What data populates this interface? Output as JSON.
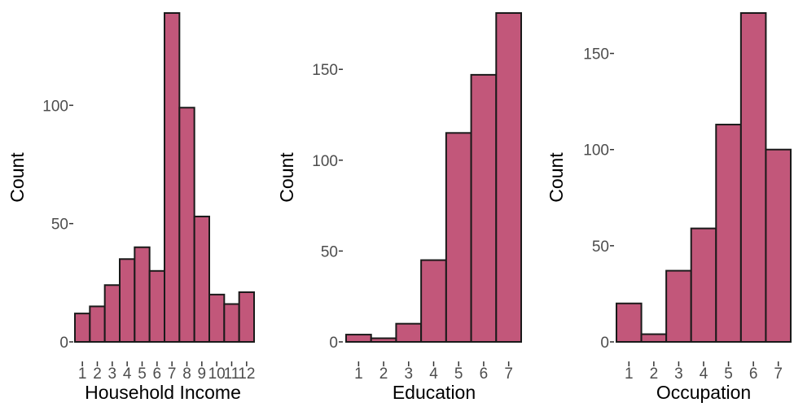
{
  "colors": {
    "bar_fill": "#c2577a",
    "bar_stroke": "#1a1a1a",
    "tick_text": "#4d4d4d",
    "tick_line": "#333333"
  },
  "chart_data": [
    {
      "type": "bar",
      "categories": [
        "1",
        "2",
        "3",
        "4",
        "5",
        "6",
        "7",
        "8",
        "9",
        "10",
        "11",
        "12"
      ],
      "values": [
        12,
        15,
        24,
        35,
        40,
        30,
        139,
        99,
        53,
        20,
        16,
        21
      ],
      "xlabel": "Household Income",
      "ylabel": "Count",
      "yticks": [
        0,
        50,
        100
      ],
      "ylim": [
        0,
        139
      ],
      "grid": false
    },
    {
      "type": "bar",
      "categories": [
        "1",
        "2",
        "3",
        "4",
        "5",
        "6",
        "7"
      ],
      "values": [
        4,
        2,
        10,
        45,
        115,
        147,
        181
      ],
      "xlabel": "Education",
      "ylabel": "Count",
      "yticks": [
        0,
        50,
        100,
        150
      ],
      "ylim": [
        0,
        181
      ],
      "grid": false
    },
    {
      "type": "bar",
      "categories": [
        "1",
        "2",
        "3",
        "4",
        "5",
        "6",
        "7"
      ],
      "values": [
        20,
        4,
        37,
        59,
        113,
        171,
        100
      ],
      "xlabel": "Occupation",
      "ylabel": "Count",
      "yticks": [
        0,
        50,
        100,
        150
      ],
      "ylim": [
        0,
        171
      ],
      "grid": false
    }
  ]
}
